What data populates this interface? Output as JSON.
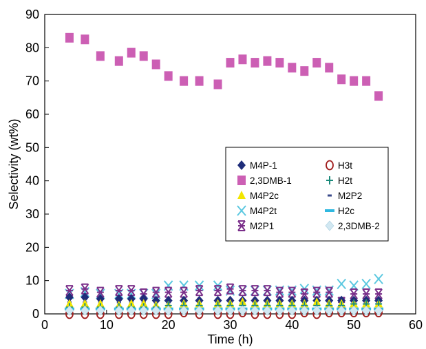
{
  "chart_data": {
    "type": "scatter",
    "xlabel": "Time (h)",
    "ylabel": "Selectivity (wt%)",
    "xlim": [
      0,
      60
    ],
    "ylim": [
      0,
      90
    ],
    "xticks": [
      "0",
      "10",
      "20",
      "30",
      "40",
      "50",
      "60"
    ],
    "yticks": [
      "0",
      "10",
      "20",
      "30",
      "40",
      "50",
      "60",
      "70",
      "80",
      "90"
    ],
    "grid": false,
    "legend_placement": "center-right",
    "series": [
      {
        "name": "M4P-1",
        "marker": "diamond",
        "color": "#1f2d7a",
        "x": [
          4,
          6.5,
          9,
          12,
          14,
          16,
          18,
          20,
          22.5,
          25,
          28,
          30,
          32,
          34,
          36,
          38,
          40,
          42,
          44,
          46,
          48,
          50,
          52,
          54
        ],
        "y": [
          5,
          5,
          4.5,
          4.5,
          4.5,
          4.5,
          4,
          4,
          4,
          4,
          4,
          4,
          4,
          4,
          4,
          4,
          4,
          4,
          4,
          4,
          4,
          4,
          4,
          4
        ]
      },
      {
        "name": "2,3DMB-1",
        "marker": "square",
        "color": "#cc5fb4",
        "x": [
          4,
          6.5,
          9,
          12,
          14,
          16,
          18,
          20,
          22.5,
          25,
          28,
          30,
          32,
          34,
          36,
          38,
          40,
          42,
          44,
          46,
          48,
          50,
          52,
          54
        ],
        "y": [
          83,
          82.5,
          77.5,
          76,
          78.5,
          77.5,
          75,
          71.5,
          70,
          70,
          69,
          75.5,
          76.5,
          75.5,
          76,
          75.5,
          74,
          73,
          75.5,
          74,
          70.5,
          70,
          70,
          65.5
        ]
      },
      {
        "name": "M4P2c",
        "marker": "triangle",
        "color": "#f2e600",
        "x": [
          4,
          6.5,
          9,
          12,
          14,
          16,
          18,
          20,
          22.5,
          25,
          28,
          30,
          32,
          34,
          36,
          38,
          40,
          42,
          44,
          46,
          48,
          50,
          52,
          54
        ],
        "y": [
          3,
          3,
          3,
          2.5,
          3,
          3,
          2.5,
          2.5,
          3,
          3,
          3,
          3,
          3.5,
          3,
          3,
          3,
          3,
          3,
          3.5,
          3,
          3,
          3,
          3,
          3
        ]
      },
      {
        "name": "M4P2t",
        "marker": "x",
        "color": "#5bc8e0",
        "x": [
          4,
          6.5,
          9,
          12,
          14,
          16,
          18,
          20,
          22.5,
          25,
          28,
          30,
          32,
          34,
          36,
          38,
          40,
          42,
          44,
          46,
          48,
          50,
          52,
          54
        ],
        "y": [
          6,
          6.5,
          6,
          6,
          6,
          6,
          6,
          8.5,
          8.5,
          8.5,
          8.5,
          7,
          7,
          7,
          7,
          7,
          7,
          7.5,
          7,
          7,
          9,
          8.5,
          9,
          10.5
        ]
      },
      {
        "name": "M2P1",
        "marker": "asterisk",
        "color": "#7a2f8a",
        "x": [
          4,
          6.5,
          9,
          12,
          14,
          16,
          18,
          20,
          22.5,
          25,
          28,
          30,
          32,
          34,
          36,
          38,
          40,
          42,
          44,
          46,
          48,
          50,
          52,
          54
        ],
        "y": [
          7,
          7.5,
          6.5,
          7,
          7,
          6,
          6.5,
          6.5,
          6.5,
          7,
          7,
          7.5,
          7,
          7,
          7,
          6.5,
          6.5,
          6,
          6.5,
          6.5,
          3.5,
          6,
          6,
          6
        ]
      },
      {
        "name": "H3t",
        "marker": "circle",
        "color": "#a01c1c",
        "x": [
          4,
          6.5,
          9,
          12,
          14,
          16,
          18,
          20,
          22.5,
          25,
          28,
          30,
          32,
          34,
          36,
          38,
          40,
          42,
          44,
          46,
          48,
          50,
          52,
          54
        ],
        "y": [
          0,
          0,
          0,
          0,
          0,
          0,
          0,
          0,
          0.5,
          0,
          0,
          0,
          0.5,
          0,
          0,
          0,
          0,
          0.5,
          0,
          0.5,
          0.5,
          0.5,
          0.5,
          0.5
        ]
      },
      {
        "name": "H2t",
        "marker": "plus",
        "color": "#1a8a7a",
        "x": [
          4,
          6.5,
          9,
          12,
          14,
          16,
          18,
          20,
          22.5,
          25,
          28,
          30,
          32,
          34,
          36,
          38,
          40,
          42,
          44,
          46,
          48,
          50,
          52,
          54
        ],
        "y": [
          2,
          2,
          2,
          2,
          2,
          2,
          2,
          2.5,
          2.5,
          2.5,
          2.5,
          2.5,
          2.5,
          2.5,
          2.5,
          2.5,
          2.5,
          2.5,
          2.5,
          2.5,
          2.5,
          3,
          3,
          3
        ]
      },
      {
        "name": "M2P2",
        "marker": "dash-small",
        "color": "#3a4a8a",
        "x": [
          4,
          6.5,
          9,
          12,
          14,
          16,
          18,
          20,
          22.5,
          25,
          28,
          30,
          32,
          34,
          36,
          38,
          40,
          42,
          44,
          46,
          48,
          50,
          52,
          54
        ],
        "y": [
          3.5,
          3.5,
          3.5,
          3.5,
          3.5,
          3.5,
          3.5,
          3.5,
          3.5,
          3.5,
          3.5,
          3.5,
          3.5,
          3.5,
          3.5,
          3.5,
          3.5,
          3.5,
          3.5,
          3.5,
          3.5,
          3.5,
          3.5,
          3.5
        ]
      },
      {
        "name": "H2c",
        "marker": "dash",
        "color": "#2fb8e0",
        "x": [
          4,
          6.5,
          9,
          12,
          14,
          16,
          18,
          20,
          22.5,
          25,
          28,
          30,
          32,
          34,
          36,
          38,
          40,
          42,
          44,
          46,
          48,
          50,
          52,
          54
        ],
        "y": [
          1.5,
          1.5,
          1.5,
          1.5,
          1.5,
          1.5,
          1.5,
          1.5,
          1.5,
          1.5,
          1.5,
          1.5,
          1.5,
          1.5,
          1.5,
          1.5,
          1.5,
          1.5,
          1.5,
          1.5,
          1.5,
          1.5,
          1.5,
          1.5
        ]
      },
      {
        "name": "2,3DMB-2",
        "marker": "diamond-light",
        "color": "#d2e8f2",
        "x": [
          4,
          6.5,
          9,
          12,
          14,
          16,
          18,
          20,
          22.5,
          25,
          28,
          30,
          32,
          34,
          36,
          38,
          40,
          42,
          44,
          46,
          48,
          50,
          52,
          54
        ],
        "y": [
          1,
          1,
          1,
          1,
          1,
          1,
          1,
          1,
          1,
          1,
          1,
          1,
          1,
          1,
          1,
          1,
          1,
          1,
          1,
          1,
          1,
          1,
          1,
          1
        ]
      }
    ]
  }
}
